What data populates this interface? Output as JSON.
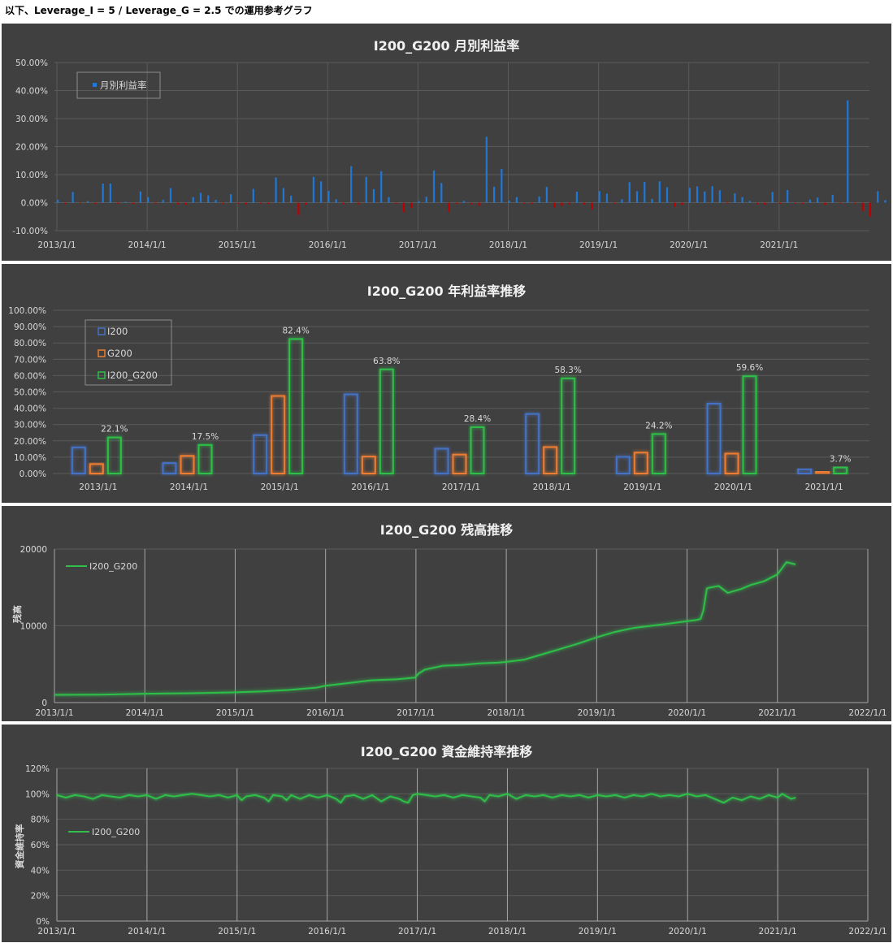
{
  "page_header": "以下、Leverage_I = 5 / Leverage_G = 2.5 での運用参考グラフ",
  "colors": {
    "bg": "#404040",
    "grid": "#5a5a5a",
    "vgrid": "#a6a6a6",
    "text": "#d9d9d9",
    "blue": "#1f78d6",
    "red": "#c00000",
    "i200": "#4472c4",
    "g200": "#ed7d31",
    "green": "#2fbf4a"
  },
  "chart_data": [
    {
      "type": "bar",
      "title": "I200_G200 月別利益率",
      "legend": [
        "月別利益率"
      ],
      "yticks": [
        "50.00%",
        "40.00%",
        "30.00%",
        "20.00%",
        "10.00%",
        "0.00%",
        "-10.00%"
      ],
      "ylim": [
        -10,
        50
      ],
      "xticks": [
        "2013/1/1",
        "2014/1/1",
        "2015/1/1",
        "2016/1/1",
        "2017/1/1",
        "2018/1/1",
        "2019/1/1",
        "2020/1/1",
        "2021/1/1"
      ],
      "start": "2013-01",
      "values": [
        1.0,
        -0.5,
        3.8,
        -0.3,
        0.5,
        -0.5,
        6.8,
        6.8,
        -0.4,
        0.3,
        -0.5,
        4.0,
        2.0,
        -0.4,
        1.0,
        5.2,
        -0.6,
        -0.8,
        2.0,
        3.5,
        2.6,
        1.0,
        -0.5,
        3.0,
        -0.3,
        -0.7,
        4.9,
        -0.4,
        -0.5,
        9.0,
        5.2,
        2.5,
        -4.4,
        -0.8,
        9.2,
        7.6,
        4.2,
        1.2,
        -0.6,
        13.0,
        -0.6,
        9.2,
        4.8,
        11.2,
        2.0,
        -0.4,
        -3.4,
        -1.8,
        0.5,
        2.1,
        11.5,
        7.0,
        -3.3,
        -0.5,
        0.6,
        -0.6,
        -1.1,
        23.5,
        5.7,
        12.0,
        0.7,
        2.0,
        -0.3,
        -0.5,
        2.2,
        5.6,
        -1.7,
        -1.1,
        -0.6,
        3.9,
        -0.7,
        -2.4,
        4.1,
        3.2,
        -0.4,
        1.2,
        7.3,
        4.1,
        7.4,
        1.3,
        7.6,
        5.5,
        -1.5,
        -0.8,
        5.3,
        5.8,
        4.0,
        5.9,
        4.4,
        -0.3,
        3.3,
        2.0,
        0.6,
        -0.6,
        -0.8,
        3.8,
        -0.4,
        4.5,
        -0.3,
        -0.5,
        1.1,
        1.8,
        -0.8,
        2.8,
        -0.3,
        36.5,
        -0.4,
        -3.0,
        -5.0,
        4.1,
        0.9,
        -0.5,
        1.6,
        4.8,
        0.8,
        -0.3,
        7.8,
        4.5,
        -0.8
      ]
    },
    {
      "type": "bar",
      "title": "I200_G200 年利益率推移",
      "series": [
        {
          "name": "I200",
          "values": [
            16.0,
            6.4,
            23.5,
            48.5,
            15.2,
            36.5,
            10.2,
            42.8,
            2.6
          ]
        },
        {
          "name": "G200",
          "values": [
            5.8,
            10.8,
            47.5,
            10.4,
            11.6,
            16.2,
            12.8,
            12.2,
            1.1
          ]
        },
        {
          "name": "I200_G200",
          "values": [
            22.1,
            17.5,
            82.4,
            63.8,
            28.4,
            58.3,
            24.2,
            59.6,
            3.7
          ]
        }
      ],
      "data_labels": [
        "22.1%",
        "17.5%",
        "82.4%",
        "63.8%",
        "28.4%",
        "58.3%",
        "24.2%",
        "59.6%",
        "3.7%"
      ],
      "categories": [
        "2013/1/1",
        "2014/1/1",
        "2015/1/1",
        "2016/1/1",
        "2017/1/1",
        "2018/1/1",
        "2019/1/1",
        "2020/1/1",
        "2021/1/1"
      ],
      "yticks": [
        "100.00%",
        "90.00%",
        "80.00%",
        "70.00%",
        "60.00%",
        "50.00%",
        "40.00%",
        "30.00%",
        "20.00%",
        "10.00%",
        "0.00%"
      ],
      "ylim": [
        0,
        100
      ]
    },
    {
      "type": "line",
      "title": "I200_G200 残高推移",
      "ylabel": "残高",
      "legend": [
        "I200_G200"
      ],
      "yticks": [
        "20000",
        "10000",
        "0"
      ],
      "ylim": [
        0,
        20000
      ],
      "xticks": [
        "2013/1/1",
        "2014/1/1",
        "2015/1/1",
        "2016/1/1",
        "2017/1/1",
        "2018/1/1",
        "2019/1/1",
        "2020/1/1",
        "2021/1/1",
        "2022/1/1"
      ],
      "points": [
        [
          2013.0,
          1000
        ],
        [
          2013.5,
          1040
        ],
        [
          2014.0,
          1150
        ],
        [
          2014.5,
          1220
        ],
        [
          2015.0,
          1330
        ],
        [
          2015.3,
          1450
        ],
        [
          2015.6,
          1650
        ],
        [
          2015.9,
          1950
        ],
        [
          2016.0,
          2200
        ],
        [
          2016.3,
          2600
        ],
        [
          2016.5,
          2900
        ],
        [
          2016.8,
          3050
        ],
        [
          2016.99,
          3250
        ],
        [
          2017.03,
          3800
        ],
        [
          2017.1,
          4300
        ],
        [
          2017.3,
          4800
        ],
        [
          2017.5,
          4900
        ],
        [
          2017.7,
          5100
        ],
        [
          2017.9,
          5200
        ],
        [
          2018.0,
          5300
        ],
        [
          2018.2,
          5600
        ],
        [
          2018.4,
          6300
        ],
        [
          2018.6,
          7000
        ],
        [
          2018.8,
          7700
        ],
        [
          2019.0,
          8500
        ],
        [
          2019.2,
          9200
        ],
        [
          2019.4,
          9700
        ],
        [
          2019.6,
          10000
        ],
        [
          2019.8,
          10300
        ],
        [
          2020.0,
          10600
        ],
        [
          2020.1,
          10750
        ],
        [
          2020.15,
          10900
        ],
        [
          2020.18,
          12000
        ],
        [
          2020.22,
          14900
        ],
        [
          2020.35,
          15200
        ],
        [
          2020.45,
          14300
        ],
        [
          2020.6,
          14800
        ],
        [
          2020.7,
          15300
        ],
        [
          2020.85,
          15800
        ],
        [
          2021.0,
          16700
        ],
        [
          2021.1,
          18300
        ],
        [
          2021.2,
          18000
        ]
      ]
    },
    {
      "type": "line",
      "title": "I200_G200 資金維持率推移",
      "ylabel": "資金維持率",
      "legend": [
        "I200_G200"
      ],
      "yticks": [
        "120%",
        "100%",
        "80%",
        "60%",
        "40%",
        "20%",
        "0%"
      ],
      "ylim": [
        0,
        120
      ],
      "xticks": [
        "2013/1/1",
        "2014/1/1",
        "2015/1/1",
        "2016/1/1",
        "2017/1/1",
        "2018/1/1",
        "2019/1/1",
        "2020/1/1",
        "2021/1/1",
        "2022/1/1"
      ],
      "points": [
        [
          2013.0,
          99
        ],
        [
          2013.1,
          97
        ],
        [
          2013.2,
          99
        ],
        [
          2013.3,
          98
        ],
        [
          2013.4,
          96
        ],
        [
          2013.5,
          99
        ],
        [
          2013.6,
          98
        ],
        [
          2013.7,
          97
        ],
        [
          2013.8,
          99
        ],
        [
          2013.9,
          98
        ],
        [
          2014.0,
          99
        ],
        [
          2014.1,
          96
        ],
        [
          2014.2,
          99
        ],
        [
          2014.3,
          98
        ],
        [
          2014.4,
          99
        ],
        [
          2014.5,
          100
        ],
        [
          2014.6,
          99
        ],
        [
          2014.7,
          98
        ],
        [
          2014.8,
          99
        ],
        [
          2014.9,
          97
        ],
        [
          2015.0,
          99
        ],
        [
          2015.05,
          95
        ],
        [
          2015.1,
          98
        ],
        [
          2015.2,
          99
        ],
        [
          2015.3,
          97
        ],
        [
          2015.35,
          94
        ],
        [
          2015.4,
          99
        ],
        [
          2015.5,
          98
        ],
        [
          2015.55,
          95
        ],
        [
          2015.6,
          99
        ],
        [
          2015.7,
          96
        ],
        [
          2015.8,
          99
        ],
        [
          2015.9,
          97
        ],
        [
          2016.0,
          99
        ],
        [
          2016.1,
          96
        ],
        [
          2016.15,
          93
        ],
        [
          2016.2,
          98
        ],
        [
          2016.3,
          99
        ],
        [
          2016.4,
          96
        ],
        [
          2016.5,
          99
        ],
        [
          2016.6,
          94
        ],
        [
          2016.7,
          98
        ],
        [
          2016.8,
          96
        ],
        [
          2016.85,
          94
        ],
        [
          2016.9,
          93
        ],
        [
          2016.95,
          99
        ],
        [
          2017.0,
          100
        ],
        [
          2017.1,
          99
        ],
        [
          2017.2,
          98
        ],
        [
          2017.3,
          99
        ],
        [
          2017.4,
          97
        ],
        [
          2017.5,
          99
        ],
        [
          2017.6,
          98
        ],
        [
          2017.7,
          97
        ],
        [
          2017.75,
          94
        ],
        [
          2017.8,
          99
        ],
        [
          2017.9,
          98
        ],
        [
          2018.0,
          100
        ],
        [
          2018.1,
          96
        ],
        [
          2018.2,
          99
        ],
        [
          2018.3,
          98
        ],
        [
          2018.4,
          99
        ],
        [
          2018.5,
          97
        ],
        [
          2018.6,
          99
        ],
        [
          2018.7,
          98
        ],
        [
          2018.8,
          99
        ],
        [
          2018.9,
          97
        ],
        [
          2019.0,
          99
        ],
        [
          2019.1,
          98
        ],
        [
          2019.2,
          99
        ],
        [
          2019.3,
          97
        ],
        [
          2019.4,
          99
        ],
        [
          2019.5,
          98
        ],
        [
          2019.6,
          100
        ],
        [
          2019.7,
          98
        ],
        [
          2019.8,
          99
        ],
        [
          2019.9,
          98
        ],
        [
          2020.0,
          100
        ],
        [
          2020.1,
          98
        ],
        [
          2020.2,
          99
        ],
        [
          2020.3,
          96
        ],
        [
          2020.4,
          93
        ],
        [
          2020.5,
          97
        ],
        [
          2020.6,
          95
        ],
        [
          2020.7,
          98
        ],
        [
          2020.8,
          96
        ],
        [
          2020.9,
          99
        ],
        [
          2021.0,
          97
        ],
        [
          2021.05,
          100
        ],
        [
          2021.1,
          98
        ],
        [
          2021.15,
          96
        ],
        [
          2021.2,
          97
        ]
      ]
    }
  ]
}
